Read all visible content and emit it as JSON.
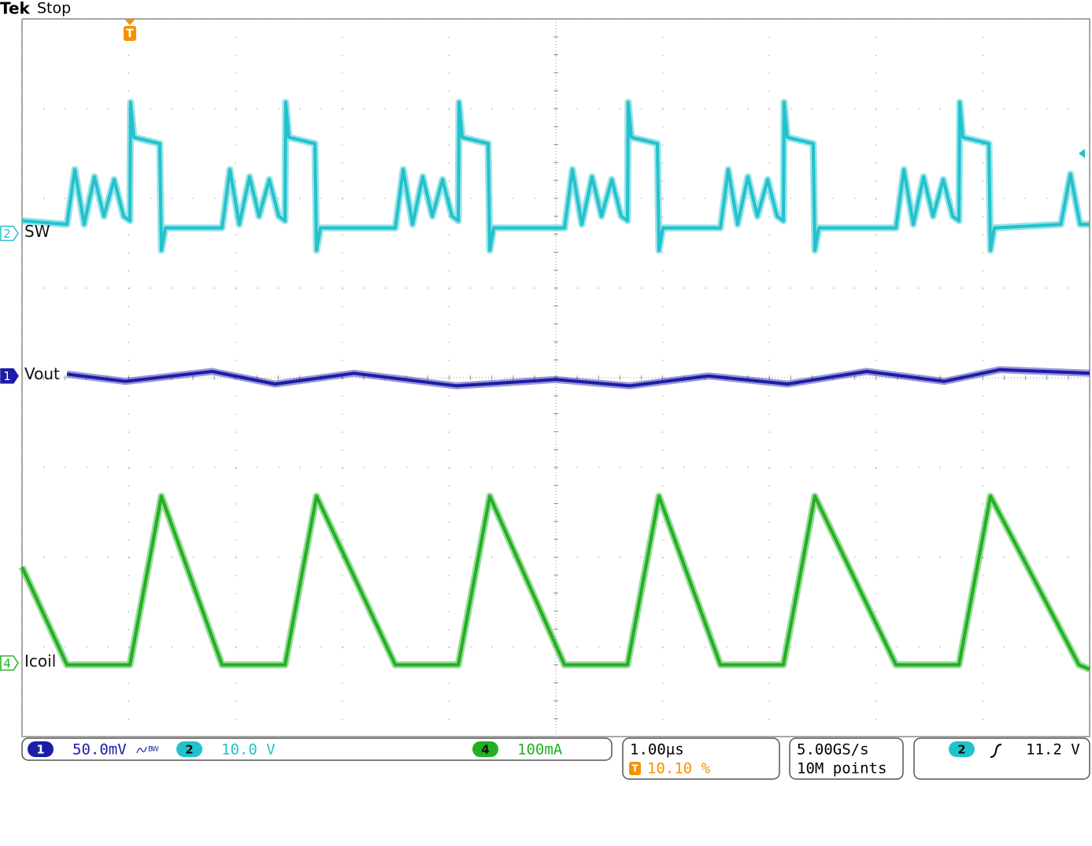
{
  "chart_data": {
    "type": "line",
    "brand": "Tek",
    "status": "Stop",
    "trigger_marker": "T",
    "xlim": [
      0,
      10
    ],
    "ylim": [
      0,
      8
    ],
    "xticks": [
      0,
      1,
      2,
      3,
      4,
      5,
      6,
      7,
      8,
      9,
      10
    ],
    "yticks": [
      0,
      1,
      2,
      3,
      4,
      5,
      6,
      7,
      8
    ],
    "grid": true,
    "series": [
      {
        "name": "Vout",
        "channel": 1,
        "color": "#1c1ca8",
        "scale": "50.0mV",
        "bandwidth_limit": "BW",
        "offset": 4.02,
        "x": [
          0.42,
          0.97,
          1.78,
          2.37,
          3.11,
          4.07,
          5.0,
          5.69,
          6.43,
          7.17,
          7.91,
          8.64,
          9.16,
          10
        ],
        "values": [
          4.04,
          3.96,
          4.07,
          3.93,
          4.05,
          3.91,
          3.98,
          3.91,
          4.02,
          3.93,
          4.07,
          3.96,
          4.09,
          4.05
        ]
      },
      {
        "name": "SW",
        "channel": 2,
        "color": "#22c2cc",
        "scale": "10.0 V",
        "offset": 5.61,
        "x": [
          0,
          0.42,
          0.494,
          0.582,
          0.678,
          0.767,
          0.863,
          0.951,
          1.01,
          1.017,
          1.047,
          1.29,
          1.305,
          1.342,
          1.873,
          1.947,
          2.035,
          2.131,
          2.22,
          2.316,
          2.404,
          2.463,
          2.47,
          2.5,
          2.743,
          2.758,
          2.795,
          3.496,
          3.57,
          3.658,
          3.754,
          3.843,
          3.939,
          4.027,
          4.086,
          4.093,
          4.123,
          4.366,
          4.381,
          4.418,
          5.081,
          5.155,
          5.243,
          5.339,
          5.428,
          5.524,
          5.612,
          5.671,
          5.678,
          5.708,
          5.951,
          5.966,
          6.003,
          6.541,
          6.615,
          6.703,
          6.799,
          6.888,
          6.984,
          7.072,
          7.131,
          7.138,
          7.168,
          7.411,
          7.426,
          7.463,
          8.186,
          8.26,
          8.348,
          8.444,
          8.533,
          8.629,
          8.717,
          8.776,
          8.783,
          8.813,
          9.056,
          9.071,
          9.108,
          9.73,
          9.82,
          9.91,
          10
        ],
        "values": [
          5.75,
          5.71,
          6.32,
          5.71,
          6.24,
          5.8,
          6.21,
          5.8,
          5.75,
          7.07,
          6.68,
          6.61,
          5.42,
          5.67,
          5.67,
          6.32,
          5.71,
          6.24,
          5.8,
          6.21,
          5.8,
          5.75,
          7.07,
          6.68,
          6.61,
          5.42,
          5.67,
          5.67,
          6.32,
          5.71,
          6.24,
          5.8,
          6.21,
          5.8,
          5.75,
          7.07,
          6.68,
          6.61,
          5.42,
          5.67,
          5.67,
          6.32,
          5.71,
          6.24,
          5.8,
          6.21,
          5.8,
          5.75,
          7.07,
          6.68,
          6.61,
          5.42,
          5.67,
          5.67,
          6.32,
          5.71,
          6.24,
          5.8,
          6.21,
          5.8,
          5.75,
          7.07,
          6.68,
          6.61,
          5.42,
          5.67,
          5.67,
          6.32,
          5.71,
          6.24,
          5.8,
          6.21,
          5.8,
          5.75,
          7.07,
          6.68,
          6.61,
          5.42,
          5.67,
          5.71,
          6.27,
          5.71,
          5.71
        ]
      },
      {
        "name": "Icoil",
        "channel": 4,
        "color": "#22b022",
        "scale": "100mA",
        "offset": 0.82,
        "x": [
          0,
          0.42,
          1.01,
          1.305,
          1.873,
          2.463,
          2.758,
          3.496,
          4.086,
          4.381,
          5.081,
          5.671,
          5.966,
          6.541,
          7.131,
          7.426,
          8.186,
          8.776,
          9.071,
          9.9,
          10
        ],
        "values": [
          1.89,
          0.8,
          0.8,
          2.68,
          0.8,
          0.8,
          2.68,
          0.8,
          0.8,
          2.68,
          0.8,
          0.8,
          2.68,
          0.8,
          0.8,
          2.68,
          0.8,
          0.8,
          2.68,
          0.8,
          0.75
        ]
      }
    ],
    "horizontal": {
      "scale": "1.00µs",
      "trigger_position": {
        "value": 10.1,
        "label": "10.10 %"
      }
    },
    "acquisition": {
      "sample_rate": "5.00GS/s",
      "record_length": "10M points"
    },
    "trigger": {
      "source": 2,
      "level": "11.2 V",
      "level_div": 6.5
    }
  }
}
